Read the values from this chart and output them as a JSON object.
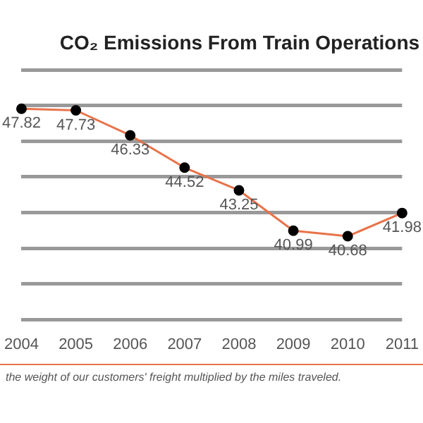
{
  "chart_data": {
    "type": "line",
    "title": "CO₂ Emissions From Train Operations",
    "categories": [
      "2004",
      "2005",
      "2006",
      "2007",
      "2008",
      "2009",
      "2010",
      "2011"
    ],
    "series": [
      {
        "color": "#e8734a",
        "values": [
          47.82,
          47.73,
          46.33,
          44.52,
          43.25,
          40.99,
          40.68,
          41.98
        ]
      }
    ],
    "ylim": [
      36,
      50
    ],
    "yticks": [
      {
        "value": 36,
        "label": null
      },
      {
        "value": 38,
        "label": null
      },
      {
        "value": 40,
        "label": null
      },
      {
        "value": 42,
        "label": null
      },
      {
        "value": 44,
        "label": null
      },
      {
        "value": 46,
        "label": null
      },
      {
        "value": 48,
        "label": null
      },
      {
        "value": 50,
        "label": null
      }
    ],
    "tick_labels": "x",
    "grid": "y",
    "marker": "circle",
    "line_style": "solid",
    "data_labels": true,
    "legend": false,
    "annotations": [
      "the weight of our customers' freight multiplied by the miles traveled."
    ]
  }
}
